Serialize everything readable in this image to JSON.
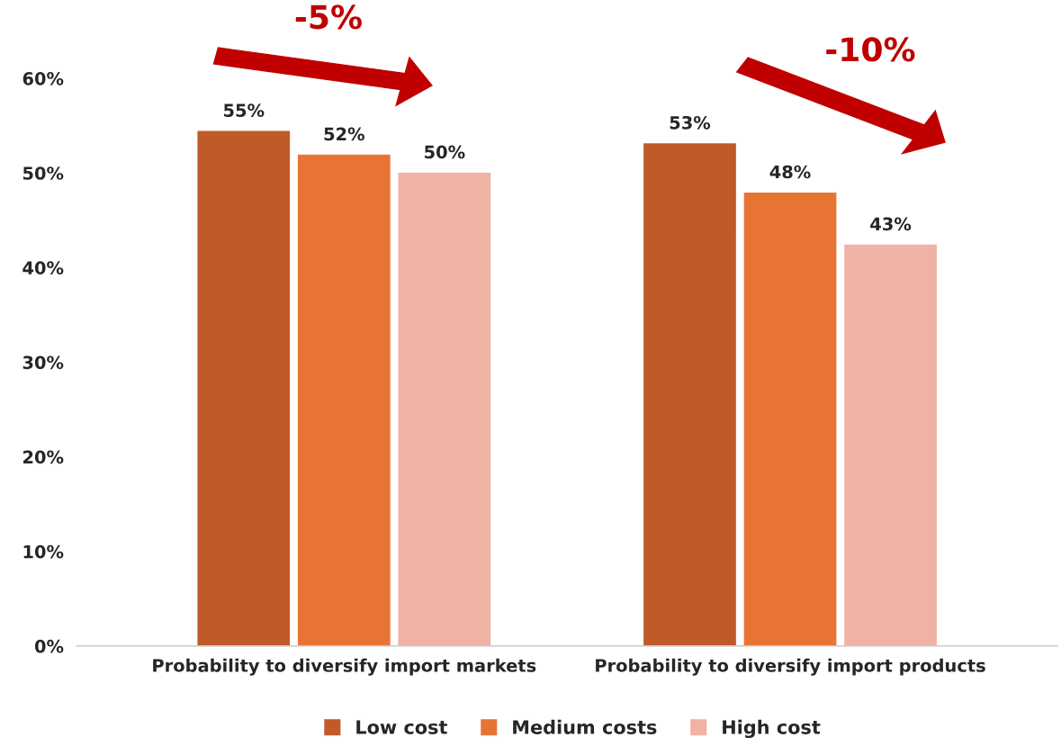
{
  "chart_data": {
    "type": "bar",
    "categories": [
      "Probability to diversify import markets",
      "Probability to diversify import products"
    ],
    "series": [
      {
        "name": "Low cost",
        "color": "#c05a28",
        "values": [
          54.5,
          53.2
        ],
        "value_labels": [
          "55%",
          "53%"
        ]
      },
      {
        "name": "Medium costs",
        "color": "#e87434",
        "values": [
          52.0,
          48.0
        ],
        "value_labels": [
          "52%",
          "48%"
        ]
      },
      {
        "name": "High cost",
        "color": "#f0b2a4",
        "values": [
          50.1,
          42.5
        ],
        "value_labels": [
          "50%",
          "43%"
        ]
      }
    ],
    "ylim": [
      0,
      60
    ],
    "yticks": [
      {
        "value": 0,
        "label": "0%"
      },
      {
        "value": 10,
        "label": "10%"
      },
      {
        "value": 20,
        "label": "20%"
      },
      {
        "value": 30,
        "label": "30%"
      },
      {
        "value": 40,
        "label": "40%"
      },
      {
        "value": 50,
        "label": "50%"
      },
      {
        "value": 60,
        "label": "60%"
      }
    ],
    "annotations": [
      "-5%",
      "-10%"
    ],
    "legend": "bottom",
    "grid": false,
    "marker": "square"
  }
}
